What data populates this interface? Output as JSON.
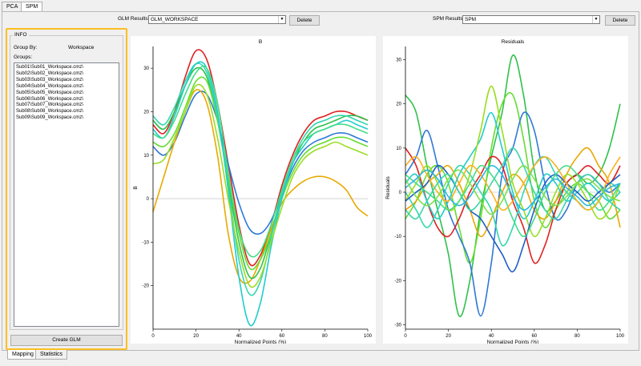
{
  "top_tabs": [
    "PCA",
    "SPM"
  ],
  "glm": {
    "label": "GLM Results:",
    "selected": "GLM_WORKSPACE",
    "delete_label": "Delete"
  },
  "spm": {
    "label": "SPM Results:",
    "selected": "SPM",
    "delete_label": "Delete"
  },
  "info": {
    "title": "INFO",
    "group_by_label": "Group By:",
    "group_by_value": "Workspace",
    "groups_label": "Groups:",
    "groups": [
      "Sub01\\Sub01_Workspace.cmz\\",
      "Sub02\\Sub02_Workspace.cmz\\",
      "Sub03\\Sub03_Workspace.cmz\\",
      "Sub04\\Sub04_Workspace.cmz\\",
      "Sub05\\Sub05_Workspace.cmz\\",
      "Sub06\\Sub06_Workspace.cmz\\",
      "Sub07\\Sub07_Workspace.cmz\\",
      "Sub08\\Sub08_Workspace.cmz\\",
      "Sub09\\Sub09_Workspace.cmz\\"
    ],
    "create_button": "Create GLM"
  },
  "bottom_tabs": [
    "Mapping",
    "Statistics"
  ],
  "accent_color": "#fbbf24",
  "chart_data": [
    {
      "type": "line",
      "title": "B",
      "xlabel": "Normalized Points (%)",
      "ylabel": "B",
      "xlim": [
        0,
        100
      ],
      "ylim": [
        -30,
        35
      ],
      "xticks": [
        0,
        20,
        40,
        60,
        80,
        100
      ],
      "yticks": [
        -20,
        -10,
        0,
        10,
        20,
        30
      ],
      "x": [
        0,
        5,
        10,
        15,
        20,
        25,
        30,
        35,
        40,
        45,
        50,
        55,
        60,
        65,
        70,
        75,
        80,
        85,
        90,
        95,
        100
      ],
      "series": [
        {
          "color": "#e02020",
          "values": [
            17,
            15,
            20,
            28,
            34,
            32,
            22,
            8,
            -6,
            -15,
            -13,
            -6,
            3,
            10,
            15,
            18,
            19,
            20,
            20,
            19,
            18
          ]
        },
        {
          "color": "#2f78d6",
          "values": [
            12,
            10,
            13,
            19,
            24,
            24,
            18,
            8,
            -1,
            -7,
            -8,
            -5,
            1,
            7,
            11,
            13,
            14,
            15,
            15,
            14,
            13
          ]
        },
        {
          "color": "#e8a800",
          "values": [
            -3,
            5,
            13,
            20,
            25,
            22,
            10,
            -8,
            -18,
            -19,
            -14,
            -7,
            -1,
            2,
            4,
            5,
            5,
            4,
            2,
            -2,
            -4
          ]
        },
        {
          "color": "#2ec24a",
          "values": [
            18,
            16,
            20,
            26,
            30,
            28,
            18,
            4,
            -10,
            -18,
            -16,
            -8,
            1,
            8,
            13,
            16,
            17,
            18,
            19,
            19,
            18
          ]
        },
        {
          "color": "#66dd33",
          "values": [
            13,
            12,
            15,
            21,
            27,
            27,
            18,
            5,
            -8,
            -16,
            -14,
            -8,
            0,
            6,
            10,
            12,
            13,
            14,
            14,
            13,
            12
          ]
        },
        {
          "color": "#33d6b0",
          "values": [
            19,
            17,
            21,
            27,
            31,
            29,
            19,
            3,
            -14,
            -22,
            -19,
            -9,
            1,
            9,
            14,
            17,
            18,
            19,
            19,
            18,
            17
          ]
        },
        {
          "color": "#22cccc",
          "values": [
            16,
            14,
            19,
            26,
            31,
            30,
            20,
            2,
            -18,
            -29,
            -24,
            -11,
            0,
            8,
            12,
            15,
            16,
            17,
            18,
            17,
            16
          ]
        },
        {
          "color": "#44dd88",
          "values": [
            15,
            14,
            18,
            24,
            29,
            30,
            22,
            6,
            -7,
            -13,
            -12,
            -6,
            2,
            9,
            13,
            15,
            16,
            17,
            17,
            16,
            15
          ]
        },
        {
          "color": "#99dd22",
          "values": [
            8,
            9,
            14,
            20,
            26,
            24,
            14,
            0,
            -12,
            -20,
            -18,
            -10,
            -2,
            5,
            9,
            11,
            12,
            13,
            12,
            11,
            10
          ]
        }
      ]
    },
    {
      "type": "line",
      "title": "Residuals",
      "xlabel": "Normalized Points (%)",
      "ylabel": "Residuals",
      "xlim": [
        0,
        100
      ],
      "ylim": [
        -31,
        33
      ],
      "xticks": [
        0,
        20,
        40,
        60,
        80,
        100
      ],
      "yticks": [
        -30,
        -20,
        -10,
        0,
        10,
        20,
        30
      ],
      "x": [
        0,
        5,
        10,
        15,
        20,
        25,
        30,
        35,
        40,
        45,
        50,
        55,
        60,
        65,
        70,
        75,
        80,
        85,
        90,
        95,
        100
      ],
      "series": [
        {
          "color": "#2ec24a",
          "values": [
            22,
            18,
            6,
            -4,
            -14,
            -28,
            -20,
            -4,
            8,
            18,
            31,
            22,
            5,
            -4,
            -2,
            2,
            4,
            2,
            4,
            10,
            20
          ]
        },
        {
          "color": "#66dd33",
          "values": [
            -6,
            -2,
            4,
            6,
            2,
            -8,
            -16,
            -6,
            10,
            20,
            22,
            12,
            -2,
            -8,
            -4,
            0,
            2,
            0,
            -2,
            -6,
            -4
          ]
        },
        {
          "color": "#2f78d6",
          "values": [
            4,
            8,
            14,
            6,
            -4,
            -10,
            -16,
            -28,
            -16,
            4,
            10,
            18,
            14,
            2,
            -6,
            -4,
            2,
            4,
            2,
            0,
            2
          ]
        },
        {
          "color": "#e02020",
          "values": [
            10,
            6,
            -2,
            -8,
            -10,
            -6,
            0,
            4,
            8,
            6,
            -2,
            -8,
            -16,
            -12,
            -4,
            2,
            4,
            6,
            4,
            2,
            6
          ]
        },
        {
          "color": "#e8a800",
          "values": [
            -4,
            -2,
            2,
            4,
            6,
            2,
            -4,
            -10,
            -6,
            0,
            4,
            2,
            -4,
            -6,
            -2,
            4,
            8,
            10,
            6,
            2,
            -8
          ]
        },
        {
          "color": "#22cccc",
          "values": [
            2,
            4,
            -2,
            -6,
            -2,
            4,
            8,
            12,
            18,
            10,
            0,
            -6,
            -2,
            4,
            2,
            -2,
            0,
            2,
            0,
            -2,
            0
          ]
        },
        {
          "color": "#33d6b0",
          "values": [
            0,
            -4,
            -8,
            -4,
            2,
            6,
            4,
            0,
            -4,
            -12,
            -8,
            0,
            6,
            8,
            4,
            0,
            -2,
            -4,
            -2,
            2,
            0
          ]
        },
        {
          "color": "#99dd22",
          "values": [
            -2,
            2,
            6,
            2,
            -4,
            -2,
            4,
            14,
            24,
            14,
            2,
            -4,
            -10,
            -6,
            0,
            4,
            2,
            -2,
            -6,
            -4,
            2
          ]
        },
        {
          "color": "#1e5fc4",
          "values": [
            -2,
            0,
            2,
            6,
            4,
            0,
            -4,
            -6,
            -10,
            -14,
            -18,
            -12,
            -4,
            2,
            4,
            2,
            0,
            -2,
            0,
            2,
            4
          ]
        },
        {
          "color": "#44dd88",
          "values": [
            4,
            2,
            0,
            -2,
            -4,
            -2,
            2,
            6,
            4,
            0,
            -6,
            -10,
            -6,
            0,
            4,
            6,
            4,
            0,
            -4,
            -2,
            2
          ]
        },
        {
          "color": "#ffb020",
          "values": [
            6,
            8,
            4,
            0,
            -2,
            2,
            6,
            4,
            0,
            -4,
            -2,
            2,
            6,
            8,
            6,
            2,
            -2,
            -4,
            -2,
            4,
            8
          ]
        },
        {
          "color": "#3ad6a8",
          "values": [
            -4,
            -6,
            -2,
            2,
            4,
            0,
            -4,
            -2,
            2,
            6,
            10,
            6,
            0,
            -4,
            -6,
            -2,
            2,
            4,
            2,
            -2,
            -4
          ]
        },
        {
          "color": "#2ab7e0",
          "values": [
            1,
            3,
            5,
            3,
            -1,
            -3,
            -1,
            3,
            6,
            4,
            -1,
            -4,
            -2,
            1,
            3,
            1,
            -1,
            -3,
            -1,
            1,
            2
          ]
        },
        {
          "color": "#7ee04a",
          "values": [
            3,
            -1,
            -3,
            -1,
            3,
            5,
            2,
            -2,
            -5,
            -2,
            3,
            6,
            3,
            -1,
            -3,
            -1,
            2,
            3,
            1,
            -1,
            -2
          ]
        }
      ]
    }
  ]
}
